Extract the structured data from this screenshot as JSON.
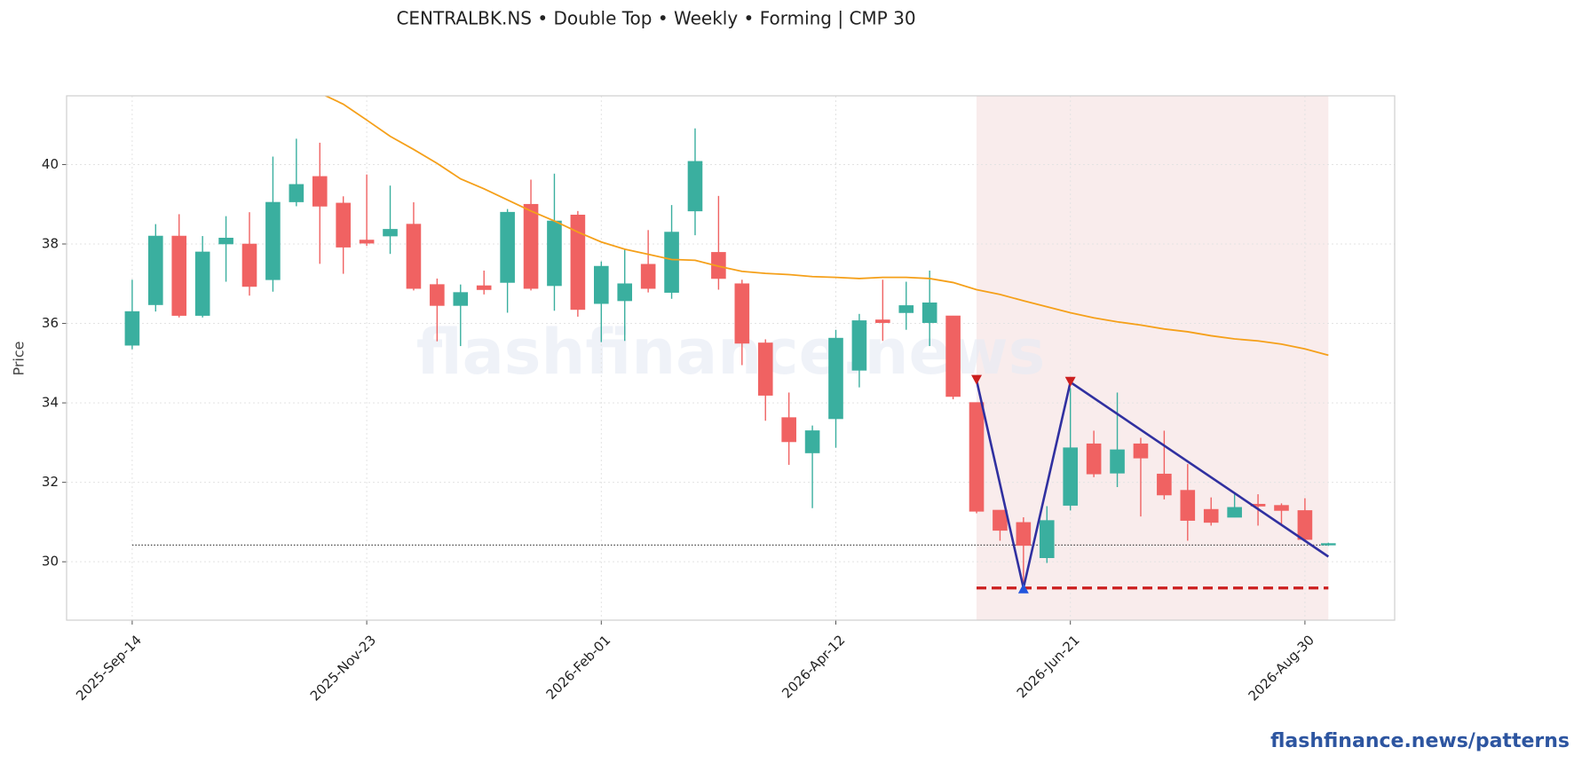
{
  "chart_data": {
    "type": "candlestick",
    "title": "CENTRALBK.NS  •  Double Top  •  Weekly  •  Forming  |  CMP 30",
    "y_label": "Price",
    "watermark": "flashfinance.news",
    "footer": "flashfinance.news/patterns",
    "categories": [
      "2025-Sep-14",
      null,
      null,
      null,
      null,
      null,
      null,
      null,
      null,
      null,
      "2025-Nov-23",
      null,
      null,
      null,
      null,
      null,
      null,
      null,
      null,
      null,
      "2026-Feb-01",
      null,
      null,
      null,
      null,
      null,
      null,
      null,
      null,
      null,
      "2026-Apr-12",
      null,
      null,
      null,
      null,
      null,
      null,
      null,
      null,
      null,
      "2026-Jun-21",
      null,
      null,
      null,
      null,
      null,
      null,
      null,
      null,
      null,
      "2026-Aug-30",
      null
    ],
    "open": [
      35.45,
      36.47,
      38.2,
      36.2,
      38.0,
      38.0,
      37.1,
      39.06,
      39.7,
      39.03,
      38.1,
      38.2,
      38.5,
      36.98,
      36.45,
      36.95,
      37.03,
      39.0,
      36.95,
      38.73,
      36.5,
      36.57,
      37.49,
      36.78,
      38.83,
      37.79,
      37.0,
      35.51,
      33.63,
      32.74,
      33.6,
      34.82,
      36.09,
      36.27,
      36.02,
      36.19,
      34.01,
      31.3,
      30.99,
      30.1,
      31.42,
      32.97,
      32.23,
      32.97,
      32.21,
      31.8,
      31.32,
      31.12,
      31.45,
      31.42,
      31.29,
      30.42
    ],
    "high": [
      37.1,
      38.5,
      38.75,
      38.2,
      38.7,
      38.8,
      40.2,
      40.65,
      40.55,
      39.2,
      39.75,
      39.47,
      39.05,
      37.13,
      36.98,
      37.33,
      38.88,
      39.62,
      39.77,
      38.83,
      37.56,
      37.87,
      38.35,
      38.98,
      40.91,
      39.21,
      37.1,
      35.6,
      34.26,
      33.43,
      35.84,
      36.24,
      37.1,
      37.05,
      37.33,
      36.19,
      34.01,
      31.3,
      31.12,
      31.4,
      34.37,
      33.3,
      34.26,
      33.12,
      33.3,
      32.46,
      31.62,
      31.73,
      31.7,
      31.47,
      31.6,
      30.48
    ],
    "low": [
      35.35,
      36.3,
      36.15,
      36.15,
      37.05,
      36.7,
      36.8,
      38.95,
      37.5,
      37.25,
      37.95,
      37.75,
      36.83,
      35.55,
      35.43,
      36.73,
      36.27,
      36.83,
      36.32,
      36.17,
      35.53,
      35.56,
      36.78,
      36.62,
      38.22,
      36.85,
      34.95,
      33.55,
      32.44,
      31.35,
      32.87,
      34.39,
      35.56,
      35.84,
      35.43,
      34.09,
      31.22,
      30.53,
      29.29,
      29.97,
      31.29,
      32.13,
      31.88,
      31.14,
      31.57,
      30.53,
      30.91,
      31.12,
      30.91,
      30.94,
      30.51,
      30.4
    ],
    "close": [
      36.3,
      38.2,
      36.2,
      37.8,
      38.15,
      36.93,
      39.05,
      39.5,
      38.95,
      37.92,
      38.02,
      38.37,
      36.88,
      36.45,
      36.78,
      36.85,
      38.8,
      36.88,
      38.58,
      36.35,
      37.44,
      37.0,
      36.88,
      38.3,
      40.08,
      37.13,
      35.5,
      34.19,
      33.02,
      33.3,
      35.63,
      36.07,
      36.02,
      36.45,
      36.52,
      34.16,
      31.27,
      30.79,
      30.41,
      31.04,
      32.87,
      32.21,
      32.82,
      32.61,
      31.68,
      31.04,
      30.99,
      31.37,
      31.4,
      31.29,
      30.56,
      30.46
    ],
    "up_color": "#3aaf9f",
    "down_color": "#f06262",
    "ma": {
      "color": "#f5a01a",
      "values": [
        null,
        null,
        null,
        null,
        null,
        null,
        null,
        null,
        41.8,
        41.52,
        41.12,
        40.71,
        40.38,
        40.03,
        39.64,
        39.39,
        39.11,
        38.83,
        38.58,
        38.3,
        38.05,
        37.87,
        37.74,
        37.61,
        37.59,
        37.44,
        37.31,
        37.26,
        37.23,
        37.18,
        37.16,
        37.13,
        37.16,
        37.16,
        37.13,
        37.03,
        36.85,
        36.73,
        36.57,
        36.42,
        36.27,
        36.14,
        36.04,
        35.96,
        35.86,
        35.79,
        35.69,
        35.61,
        35.56,
        35.48,
        35.36,
        35.2
      ]
    },
    "pattern": {
      "color": "#3030a0",
      "x": [
        36,
        38,
        40,
        51
      ],
      "values": [
        34.57,
        29.34,
        34.52,
        30.13
      ],
      "peak_color": "#cc1f1f",
      "trough_color": "#2255dd"
    },
    "highlight": [
      36,
      51
    ],
    "highlight_color": "#f9ecec",
    "support": 29.34,
    "support_color": "#cc1f1f",
    "cmp_level": 30.42,
    "ylim": [
      28.53,
      41.73
    ],
    "yticks": [
      30,
      32,
      34,
      36,
      38,
      40
    ],
    "grid": true
  }
}
